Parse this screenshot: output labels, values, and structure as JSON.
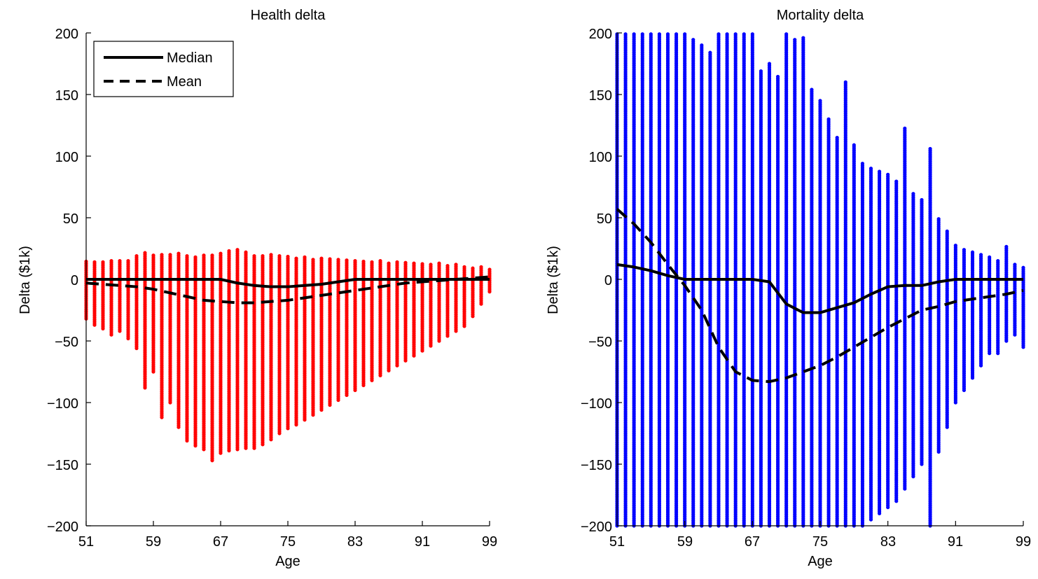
{
  "chart_data": [
    {
      "type": "scatter",
      "title": "Health delta",
      "xlabel": "Age",
      "ylabel": "Delta ($1k)",
      "xlim": [
        51,
        99
      ],
      "ylim": [
        -200,
        200
      ],
      "xticks": [
        51,
        59,
        67,
        75,
        83,
        91,
        99
      ],
      "xtick_labels": [
        "51",
        "59",
        "67",
        "75",
        "83",
        "91",
        "99"
      ],
      "yticks": [
        -200,
        -150,
        -100,
        -50,
        0,
        50,
        100,
        150,
        200
      ],
      "ytick_labels": [
        "−200",
        "−150",
        "−100",
        "−50",
        "0",
        "50",
        "100",
        "150",
        "200"
      ],
      "scatter_color": "#ff0000",
      "grid": false,
      "legend": {
        "placement": "top-left",
        "entries": [
          {
            "label": "Median",
            "style": "solid"
          },
          {
            "label": "Mean",
            "style": "dashed"
          }
        ]
      },
      "scatter_ranges": {
        "x": [
          51,
          52,
          53,
          54,
          55,
          56,
          57,
          58,
          59,
          60,
          61,
          62,
          63,
          64,
          65,
          66,
          67,
          68,
          69,
          70,
          71,
          72,
          73,
          74,
          75,
          76,
          77,
          78,
          79,
          80,
          81,
          82,
          83,
          84,
          85,
          86,
          87,
          88,
          89,
          90,
          91,
          92,
          93,
          94,
          95,
          96,
          97,
          98,
          99
        ],
        "min": [
          -32,
          -37,
          -40,
          -45,
          -42,
          -48,
          -56,
          -88,
          -75,
          -112,
          -100,
          -120,
          -131,
          -135,
          -138,
          -147,
          -141,
          -139,
          -138,
          -137,
          -137,
          -134,
          -130,
          -125,
          -121,
          -118,
          -114,
          -110,
          -106,
          -102,
          -98,
          -94,
          -90,
          -86,
          -82,
          -78,
          -74,
          -70,
          -66,
          -62,
          -58,
          -54,
          -50,
          -46,
          -42,
          -38,
          -30,
          -20,
          -10
        ],
        "max": [
          15,
          14,
          14,
          16,
          15,
          16,
          19,
          22,
          20,
          20,
          21,
          21,
          19,
          19,
          20,
          20,
          22,
          23,
          24,
          22,
          20,
          20,
          20,
          19,
          19,
          18,
          18,
          17,
          17,
          17,
          16,
          16,
          15,
          15,
          15,
          15,
          14,
          14,
          14,
          13,
          13,
          13,
          13,
          12,
          12,
          11,
          10,
          10,
          8
        ]
      },
      "series": [
        {
          "name": "Median",
          "style": "solid",
          "x": [
            51,
            53,
            55,
            57,
            59,
            61,
            63,
            65,
            67,
            69,
            71,
            73,
            75,
            77,
            79,
            81,
            83,
            85,
            87,
            89,
            91,
            93,
            95,
            97,
            99
          ],
          "y": [
            0,
            0,
            0,
            0,
            0,
            0,
            0,
            0,
            0,
            -3,
            -5,
            -6,
            -6,
            -5,
            -4,
            -2,
            0,
            0,
            0,
            0,
            0,
            0,
            0,
            0,
            0
          ]
        },
        {
          "name": "Mean",
          "style": "dashed",
          "x": [
            51,
            53,
            55,
            57,
            59,
            61,
            63,
            65,
            67,
            69,
            71,
            73,
            75,
            77,
            79,
            81,
            83,
            85,
            87,
            89,
            91,
            93,
            95,
            97,
            99
          ],
          "y": [
            -3,
            -4,
            -5,
            -6,
            -8,
            -11,
            -14,
            -17,
            -18,
            -19,
            -19,
            -18,
            -17,
            -15,
            -13,
            -11,
            -9,
            -7,
            -5,
            -3,
            -2,
            -1,
            0,
            1,
            2
          ]
        }
      ]
    },
    {
      "type": "scatter",
      "title": "Mortality delta",
      "xlabel": "Age",
      "ylabel": "Delta ($1k)",
      "xlim": [
        51,
        99
      ],
      "ylim": [
        -200,
        200
      ],
      "xticks": [
        51,
        59,
        67,
        75,
        83,
        91,
        99
      ],
      "xtick_labels": [
        "51",
        "59",
        "67",
        "75",
        "83",
        "91",
        "99"
      ],
      "yticks": [
        -200,
        -150,
        -100,
        -50,
        0,
        50,
        100,
        150,
        200
      ],
      "ytick_labels": [
        "−200",
        "−150",
        "−100",
        "−50",
        "0",
        "50",
        "100",
        "150",
        "200"
      ],
      "scatter_color": "#0000ff",
      "grid": false,
      "scatter_ranges": {
        "x": [
          51,
          52,
          53,
          54,
          55,
          56,
          57,
          58,
          59,
          60,
          61,
          62,
          63,
          64,
          65,
          66,
          67,
          68,
          69,
          70,
          71,
          72,
          73,
          74,
          75,
          76,
          77,
          78,
          79,
          80,
          81,
          82,
          83,
          84,
          85,
          86,
          87,
          88,
          89,
          90,
          91,
          92,
          93,
          94,
          95,
          96,
          97,
          98,
          99
        ],
        "min": [
          -200,
          -200,
          -200,
          -200,
          -200,
          -200,
          -200,
          -200,
          -200,
          -200,
          -200,
          -200,
          -200,
          -200,
          -200,
          -200,
          -200,
          -200,
          -200,
          -200,
          -200,
          -200,
          -200,
          -200,
          -200,
          -200,
          -200,
          -200,
          -200,
          -200,
          -195,
          -190,
          -185,
          -180,
          -170,
          -160,
          -150,
          -200,
          -140,
          -120,
          -100,
          -90,
          -80,
          -70,
          -60,
          -60,
          -50,
          -45,
          -55
        ],
        "max": [
          200,
          200,
          200,
          200,
          200,
          200,
          200,
          200,
          200,
          195,
          190,
          185,
          200,
          200,
          200,
          200,
          200,
          170,
          175,
          165,
          200,
          195,
          197,
          155,
          145,
          130,
          115,
          160,
          110,
          95,
          90,
          88,
          85,
          80,
          123,
          70,
          65,
          107,
          50,
          40,
          28,
          25,
          22,
          20,
          18,
          15,
          27,
          12,
          10
        ]
      },
      "series": [
        {
          "name": "Median",
          "style": "solid",
          "x": [
            51,
            53,
            55,
            57,
            59,
            61,
            63,
            65,
            67,
            69,
            71,
            73,
            75,
            77,
            79,
            81,
            83,
            85,
            87,
            89,
            91,
            93,
            95,
            97,
            99
          ],
          "y": [
            12,
            10,
            7,
            3,
            0,
            0,
            0,
            0,
            0,
            -2,
            -20,
            -27,
            -27,
            -23,
            -19,
            -12,
            -6,
            -5,
            -5,
            -2,
            0,
            0,
            0,
            0,
            0
          ]
        },
        {
          "name": "Mean",
          "style": "dashed",
          "x": [
            51,
            53,
            55,
            57,
            59,
            61,
            63,
            65,
            67,
            69,
            71,
            73,
            75,
            77,
            79,
            81,
            83,
            85,
            87,
            89,
            91,
            93,
            95,
            97,
            99
          ],
          "y": [
            57,
            45,
            30,
            12,
            -5,
            -25,
            -55,
            -75,
            -82,
            -83,
            -80,
            -75,
            -70,
            -63,
            -55,
            -47,
            -39,
            -32,
            -25,
            -22,
            -18,
            -16,
            -14,
            -12,
            -9
          ]
        }
      ]
    }
  ]
}
